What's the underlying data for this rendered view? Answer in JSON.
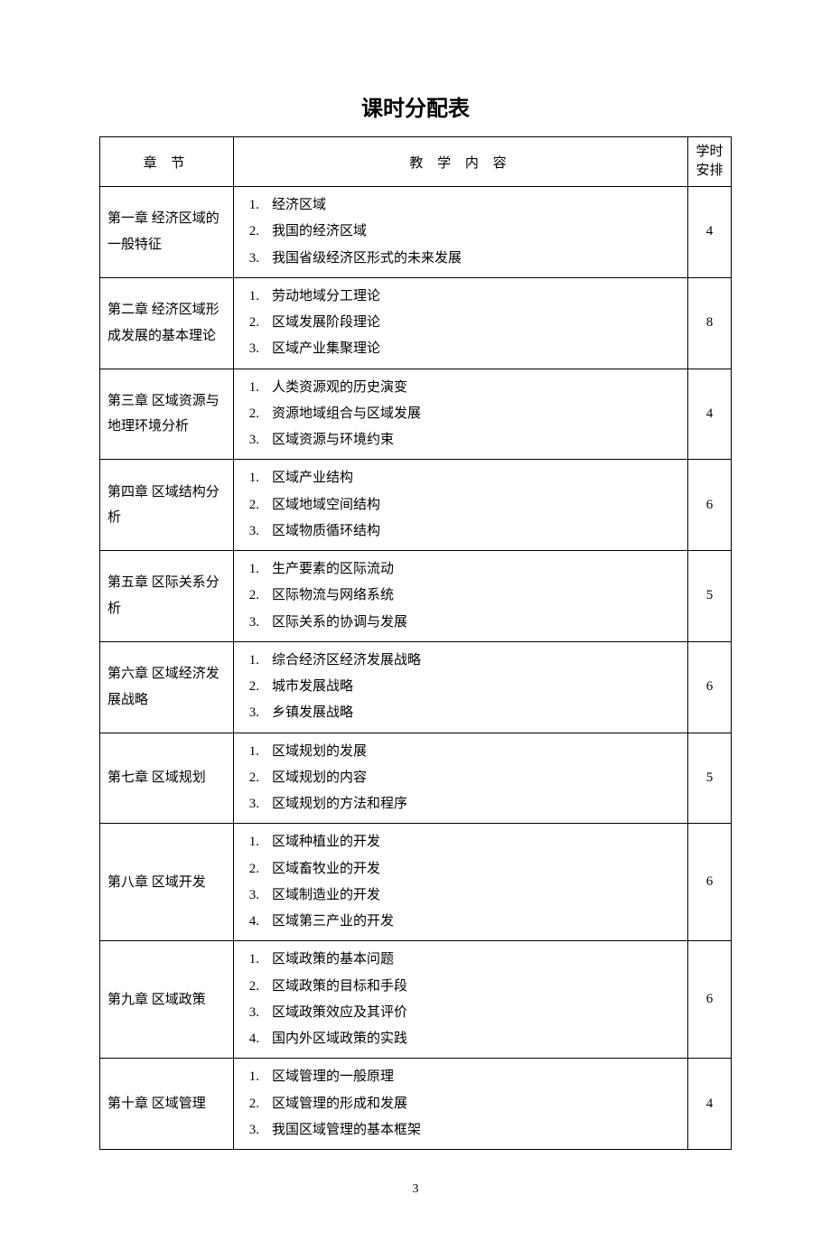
{
  "page_title": "课时分配表",
  "page_number": "3",
  "headers": {
    "chapter": "章 节",
    "content": "教 学 内 容",
    "hours_line1": "学时",
    "hours_line2": "安排"
  },
  "rows": [
    {
      "chapter": "第一章  经济区域的一般特征",
      "items": [
        "经济区域",
        "我国的经济区域",
        "我国省级经济区形式的未来发展"
      ],
      "hours": "4"
    },
    {
      "chapter": "第二章  经济区域形成发展的基本理论",
      "items": [
        "劳动地域分工理论",
        "区域发展阶段理论",
        "区域产业集聚理论"
      ],
      "hours": "8"
    },
    {
      "chapter": "第三章  区域资源与地理环境分析",
      "items": [
        "人类资源观的历史演变",
        "资源地域组合与区域发展",
        "区域资源与环境约束"
      ],
      "hours": "4"
    },
    {
      "chapter": "第四章  区域结构分析",
      "items": [
        "区域产业结构",
        "区域地域空间结构",
        "区域物质循环结构"
      ],
      "hours": "6"
    },
    {
      "chapter": "第五章  区际关系分析",
      "items": [
        "生产要素的区际流动",
        "区际物流与网络系统",
        "区际关系的协调与发展"
      ],
      "hours": "5"
    },
    {
      "chapter": "第六章  区域经济发展战略",
      "items": [
        "综合经济区经济发展战略",
        "城市发展战略",
        "乡镇发展战略"
      ],
      "hours": "6"
    },
    {
      "chapter": "第七章  区域规划",
      "items": [
        "区域规划的发展",
        "区域规划的内容",
        "区域规划的方法和程序"
      ],
      "hours": "5"
    },
    {
      "chapter": "第八章  区域开发",
      "items": [
        "区域种植业的开发",
        "区域畜牧业的开发",
        "区域制造业的开发",
        "区域第三产业的开发"
      ],
      "hours": "6"
    },
    {
      "chapter": "第九章  区域政策",
      "items": [
        "区域政策的基本问题",
        "区域政策的目标和手段",
        "区域政策效应及其评价",
        "国内外区域政策的实践"
      ],
      "hours": "6"
    },
    {
      "chapter": "第十章  区域管理",
      "items": [
        "区域管理的一般原理",
        "区域管理的形成和发展",
        "我国区域管理的基本框架"
      ],
      "hours": "4"
    }
  ]
}
